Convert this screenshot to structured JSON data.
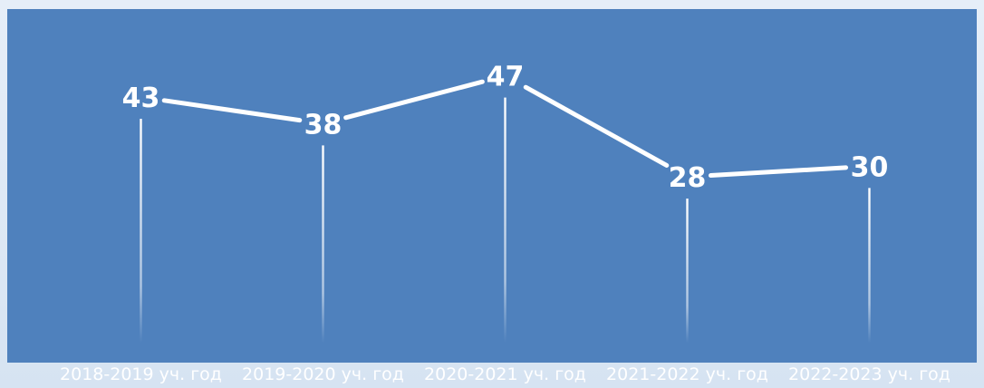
{
  "chart_data": {
    "type": "line",
    "categories": [
      "2018-2019 уч. год",
      "2019-2020 уч. год",
      "2020-2021 уч. год",
      "2021-2022 уч. год",
      "2022-2023 уч. год"
    ],
    "values": [
      43,
      38,
      47,
      28,
      30
    ],
    "value_labels": [
      "43",
      "38",
      "47",
      "28",
      "30"
    ],
    "title": "",
    "xlabel": "",
    "ylabel": "",
    "grid": false,
    "legend": "none",
    "drop_lines": true,
    "colors": {
      "background": "#4f81bd",
      "line": "#ffffff",
      "text": "#ffffff"
    }
  }
}
